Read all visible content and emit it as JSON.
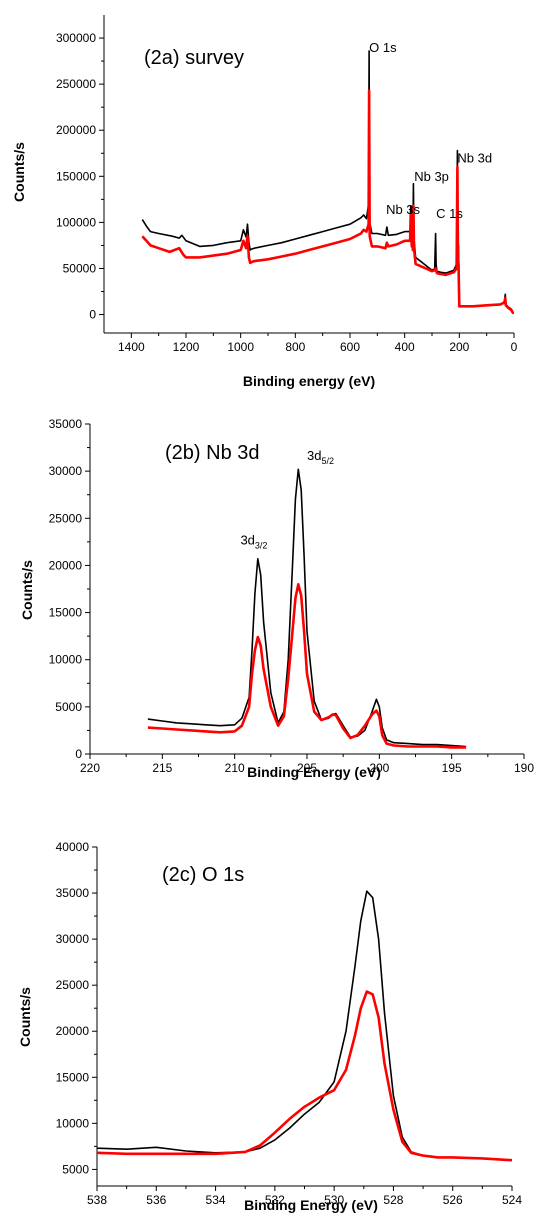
{
  "chart_data": [
    {
      "type": "line",
      "title": "(2a) survey",
      "xlabel": "Binding energy (eV)",
      "ylabel": "Counts/s",
      "xlim": [
        1500,
        0
      ],
      "ylim": [
        -20000,
        325000
      ],
      "x_ticks": [
        1400,
        1200,
        1000,
        800,
        600,
        400,
        200,
        0
      ],
      "y_ticks": [
        0,
        50000,
        100000,
        150000,
        200000,
        250000,
        300000
      ],
      "annotations": [
        {
          "text": "O 1s",
          "x": 530,
          "y": 285000
        },
        {
          "text": "Nb 3p",
          "x": 365,
          "y": 145000
        },
        {
          "text": "Nb 3d",
          "x": 207,
          "y": 165000
        },
        {
          "text": "Nb 3s",
          "x": 468,
          "y": 109000
        },
        {
          "text": "C 1s",
          "x": 285,
          "y": 105000
        }
      ],
      "series": [
        {
          "color": "#000000",
          "x": [
            1360,
            1345,
            1330,
            1300,
            1250,
            1225,
            1215,
            1200,
            1150,
            1100,
            1050,
            1000,
            990,
            980,
            975,
            970,
            965,
            960,
            950,
            900,
            850,
            800,
            750,
            700,
            650,
            600,
            560,
            550,
            540,
            532,
            530,
            528,
            520,
            500,
            470,
            465,
            460,
            430,
            400,
            380,
            378,
            374,
            372,
            370,
            368,
            366,
            360,
            300,
            290,
            287,
            285,
            282,
            270,
            250,
            220,
            210,
            207,
            205,
            203,
            200,
            190,
            150,
            100,
            50,
            35,
            32,
            30,
            20,
            10,
            5,
            0
          ],
          "y": [
            103000,
            96000,
            90000,
            88000,
            85000,
            83000,
            86000,
            80000,
            74000,
            75000,
            78000,
            80000,
            92000,
            84000,
            98000,
            78000,
            70000,
            71000,
            72000,
            75000,
            78000,
            82000,
            86000,
            90000,
            94000,
            98000,
            105000,
            108000,
            104000,
            120000,
            286000,
            100000,
            88000,
            88000,
            86000,
            95000,
            86000,
            87000,
            90000,
            90000,
            118000,
            85000,
            115000,
            80000,
            142000,
            82000,
            62000,
            48000,
            50000,
            88000,
            55000,
            47000,
            46000,
            45000,
            48000,
            55000,
            178000,
            65000,
            75000,
            10000,
            9000,
            9000,
            10000,
            11000,
            14000,
            22000,
            11000,
            8000,
            6000,
            3000,
            1000
          ]
        },
        {
          "color": "#ff0000",
          "x": [
            1360,
            1345,
            1330,
            1300,
            1260,
            1225,
            1210,
            1200,
            1150,
            1100,
            1050,
            1000,
            990,
            980,
            975,
            970,
            965,
            960,
            950,
            900,
            850,
            800,
            750,
            700,
            650,
            600,
            560,
            550,
            540,
            532,
            530,
            528,
            520,
            500,
            470,
            465,
            460,
            430,
            400,
            380,
            378,
            374,
            372,
            370,
            368,
            366,
            360,
            300,
            290,
            287,
            285,
            282,
            270,
            250,
            220,
            210,
            207,
            205,
            203,
            200,
            190,
            150,
            100,
            50,
            35,
            32,
            30,
            20,
            10,
            5,
            0
          ],
          "y": [
            85000,
            80000,
            75000,
            72000,
            68000,
            72000,
            65000,
            62000,
            62000,
            64000,
            66000,
            70000,
            80000,
            72000,
            85000,
            62000,
            56000,
            57000,
            58000,
            60000,
            63000,
            66000,
            70000,
            74000,
            78000,
            82000,
            88000,
            92000,
            90000,
            98000,
            243000,
            85000,
            74000,
            74000,
            72000,
            78000,
            74000,
            76000,
            80000,
            80000,
            108000,
            74000,
            110000,
            70000,
            118000,
            72000,
            55000,
            47000,
            48000,
            50000,
            48000,
            45000,
            44000,
            43000,
            46000,
            50000,
            160000,
            62000,
            55000,
            9000,
            9000,
            9000,
            10000,
            11000,
            13000,
            18000,
            10000,
            7000,
            5000,
            2500,
            1000
          ]
        }
      ]
    },
    {
      "type": "line",
      "title": "(2b) Nb 3d",
      "xlabel": "Binding Energy (eV)",
      "ylabel": "Counts/s",
      "xlim": [
        220,
        190
      ],
      "ylim": [
        0,
        35000
      ],
      "x_ticks": [
        220,
        215,
        210,
        205,
        200,
        195,
        190
      ],
      "y_ticks": [
        0,
        5000,
        10000,
        15000,
        20000,
        25000,
        30000,
        35000
      ],
      "annotations": [
        {
          "text": "3d",
          "sub": "3/2",
          "x": 209.6,
          "y": 22200
        },
        {
          "text": "3d",
          "sub": "5/2",
          "x": 205.0,
          "y": 31200
        }
      ],
      "series": [
        {
          "color": "#000000",
          "x": [
            216,
            215,
            214,
            213,
            212,
            211,
            210,
            209.5,
            209,
            208.8,
            208.6,
            208.4,
            208.2,
            208,
            207.5,
            207,
            206.6,
            206.3,
            206,
            205.8,
            205.6,
            205.4,
            205.2,
            205,
            204.5,
            204,
            203.5,
            203.2,
            203,
            202.5,
            202,
            201.5,
            201,
            200.5,
            200.2,
            200,
            199.8,
            199.5,
            199,
            198,
            197,
            196,
            195,
            194
          ],
          "y": [
            3700,
            3500,
            3300,
            3200,
            3100,
            3000,
            3100,
            3800,
            6000,
            11000,
            17000,
            20700,
            19000,
            14000,
            6500,
            3300,
            4500,
            10000,
            20000,
            27000,
            30200,
            28000,
            21000,
            13000,
            5600,
            3600,
            3800,
            4200,
            4300,
            3000,
            1800,
            1900,
            2500,
            4500,
            5800,
            5000,
            2800,
            1500,
            1200,
            1100,
            1000,
            1000,
            900,
            800
          ]
        },
        {
          "color": "#ff0000",
          "x": [
            216,
            215,
            214,
            213,
            212,
            211,
            210,
            209.5,
            209,
            208.8,
            208.6,
            208.4,
            208.2,
            208,
            207.5,
            207,
            206.6,
            206.3,
            206,
            205.8,
            205.6,
            205.4,
            205.2,
            205,
            204.5,
            204,
            203.5,
            203.2,
            203,
            202.5,
            202,
            201.5,
            201,
            200.5,
            200.2,
            200,
            199.8,
            199.5,
            199,
            198,
            197,
            196,
            195,
            194
          ],
          "y": [
            2800,
            2700,
            2600,
            2500,
            2400,
            2300,
            2400,
            3000,
            5000,
            8500,
            11000,
            12400,
            11500,
            9000,
            5000,
            3000,
            4000,
            8000,
            13000,
            16500,
            18000,
            16800,
            13000,
            8500,
            4500,
            3600,
            3900,
            4200,
            4100,
            2700,
            1700,
            2000,
            3000,
            4200,
            4600,
            4000,
            2000,
            1100,
            900,
            800,
            800,
            800,
            700,
            700
          ]
        }
      ]
    },
    {
      "type": "line",
      "title": "(2c) O 1s",
      "xlabel": "Binding Energy  (eV)",
      "ylabel": "Counts/s",
      "xlim": [
        538,
        524
      ],
      "ylim": [
        3200,
        40000
      ],
      "x_ticks": [
        538,
        536,
        534,
        532,
        530,
        528,
        526,
        524
      ],
      "y_ticks": [
        5000,
        10000,
        15000,
        20000,
        25000,
        30000,
        35000,
        40000
      ],
      "annotations": [],
      "series": [
        {
          "color": "#000000",
          "x": [
            538,
            537,
            536,
            535,
            534,
            533,
            532.5,
            532,
            531.5,
            531,
            530.5,
            530,
            529.6,
            529.3,
            529.1,
            528.9,
            528.7,
            528.5,
            528.3,
            528,
            527.7,
            527.4,
            527,
            526.5,
            526,
            525,
            524
          ],
          "y": [
            7300,
            7200,
            7400,
            7000,
            6800,
            6900,
            7300,
            8200,
            9500,
            11000,
            12300,
            14500,
            20000,
            27000,
            32000,
            35200,
            34500,
            30000,
            22000,
            13000,
            8500,
            6900,
            6500,
            6300,
            6300,
            6200,
            6000
          ]
        },
        {
          "color": "#ff0000",
          "x": [
            538,
            537,
            536,
            535,
            534,
            533,
            532.5,
            532,
            531.5,
            531,
            530.5,
            530,
            529.6,
            529.3,
            529.1,
            528.9,
            528.7,
            528.5,
            528.3,
            528,
            527.7,
            527.4,
            527,
            526.5,
            526,
            525,
            524
          ],
          "y": [
            6800,
            6700,
            6700,
            6700,
            6700,
            6900,
            7600,
            9000,
            10500,
            11800,
            12800,
            13600,
            15800,
            19500,
            22500,
            24300,
            24000,
            21500,
            16500,
            11500,
            8000,
            6800,
            6500,
            6300,
            6300,
            6200,
            6000
          ]
        }
      ]
    }
  ]
}
